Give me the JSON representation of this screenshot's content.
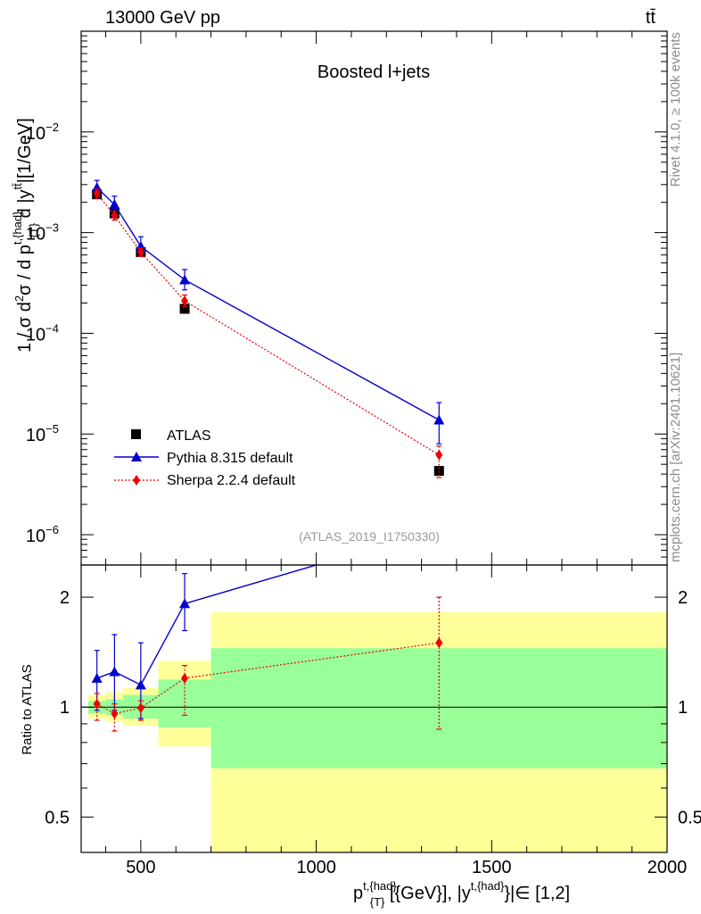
{
  "header": {
    "left_title": "13000 GeV pp",
    "right_title": "tt̄"
  },
  "side_labels": {
    "top": "Rivet 4.1.0, ≥ 100k events",
    "bottom": "mcplots.cern.ch [arXiv:2401.10621]"
  },
  "colors": {
    "data": "#000000",
    "pythia": "#0000cc",
    "sherpa": "#ee0000",
    "band_inner": "#99ff99",
    "band_outer": "#ffff99"
  },
  "chart_data": [
    {
      "type": "line",
      "title": "Boosted l+jets",
      "analysis_id": "(ATLAS_2019_I1750330)",
      "ylabel": "1 / σ d²σ / d p_T^{t,had} d |y^{tt̄}| [1/GeV]",
      "yscale": "log",
      "xlim": [
        330,
        2000
      ],
      "ylim": [
        5e-07,
        0.1
      ],
      "y_ticks": [
        {
          "mantissa": "10",
          "exp": "−2",
          "value": 0.01
        },
        {
          "mantissa": "10",
          "exp": "−3",
          "value": 0.001
        },
        {
          "mantissa": "10",
          "exp": "−4",
          "value": 0.0001
        },
        {
          "mantissa": "10",
          "exp": "−5",
          "value": 1e-05
        },
        {
          "mantissa": "10",
          "exp": "−6",
          "value": 1e-06
        }
      ],
      "legend": [
        "ATLAS",
        "Pythia 8.315 default",
        "Sherpa 2.2.4 default"
      ],
      "series": [
        {
          "name": "ATLAS",
          "style": "square",
          "x": [
            375,
            425,
            500,
            625,
            1350
          ],
          "y": [
            0.0024,
            0.00155,
            0.00064,
            0.000175,
            4.3e-06
          ]
        },
        {
          "name": "Pythia 8.315 default",
          "style": "triangle",
          "x": [
            375,
            425,
            500,
            625,
            1350
          ],
          "y": [
            0.0028,
            0.0019,
            0.00073,
            0.00034,
            1.38e-05
          ],
          "err_up": [
            0.0033,
            0.0023,
            0.00091,
            0.00043,
            2.05e-05
          ],
          "err_dn": [
            0.0024,
            0.0015,
            0.00058,
            0.00027,
            8e-06
          ]
        },
        {
          "name": "Sherpa 2.2.4 default",
          "style": "diamond",
          "x": [
            375,
            425,
            500,
            625,
            1350
          ],
          "y": [
            0.00245,
            0.00148,
            0.00064,
            0.00021,
            6.2e-06
          ],
          "err_up": [
            0.0027,
            0.00163,
            0.0007,
            0.00024,
            7.6e-06
          ],
          "err_dn": [
            0.0022,
            0.00133,
            0.00058,
            0.000185,
            3.7e-06
          ]
        }
      ]
    },
    {
      "type": "line",
      "title": "",
      "ylabel": "Ratio to ATLAS",
      "xlabel": "p_T^{t,had} [GeV], |y^{t,had}| ∈ [1,2]",
      "yscale": "log",
      "xlim": [
        330,
        2000
      ],
      "ylim": [
        0.4,
        2.45
      ],
      "x_ticks": [
        "500",
        "1000",
        "1500",
        "2000"
      ],
      "x_tick_values": [
        500,
        1000,
        1500,
        2000
      ],
      "y_ticks": [
        "2",
        "1",
        "0.5"
      ],
      "y_tick_values": [
        2,
        1,
        0.5
      ],
      "bands": {
        "bins": [
          [
            350,
            400
          ],
          [
            400,
            450
          ],
          [
            450,
            550
          ],
          [
            550,
            700
          ],
          [
            700,
            2000
          ]
        ],
        "inner_lo": [
          0.96,
          0.95,
          0.93,
          0.88,
          0.68
        ],
        "inner_hi": [
          1.04,
          1.05,
          1.08,
          1.19,
          1.45
        ],
        "outer_lo": [
          0.93,
          0.91,
          0.89,
          0.78,
          0.4
        ],
        "outer_hi": [
          1.08,
          1.1,
          1.13,
          1.34,
          1.82
        ]
      },
      "series": [
        {
          "name": "Pythia 8.315 default",
          "style": "triangle",
          "x": [
            375,
            425,
            500,
            625,
            1000
          ],
          "y": [
            1.2,
            1.25,
            1.15,
            1.92,
            2.45
          ],
          "err_up": [
            1.43,
            1.58,
            1.5,
            2.32,
            null
          ],
          "err_dn": [
            0.98,
            0.98,
            0.93,
            1.62,
            null
          ],
          "markers": [
            true,
            true,
            true,
            true,
            false
          ]
        },
        {
          "name": "Sherpa 2.2.4 default",
          "style": "diamond",
          "x": [
            375,
            425,
            500,
            625,
            1350
          ],
          "y": [
            1.02,
            0.96,
            0.995,
            1.2,
            1.5
          ],
          "err_up": [
            1.09,
            1.02,
            1.04,
            1.3,
            2.0
          ],
          "err_dn": [
            0.92,
            0.86,
            0.92,
            0.95,
            0.87
          ]
        }
      ]
    }
  ]
}
